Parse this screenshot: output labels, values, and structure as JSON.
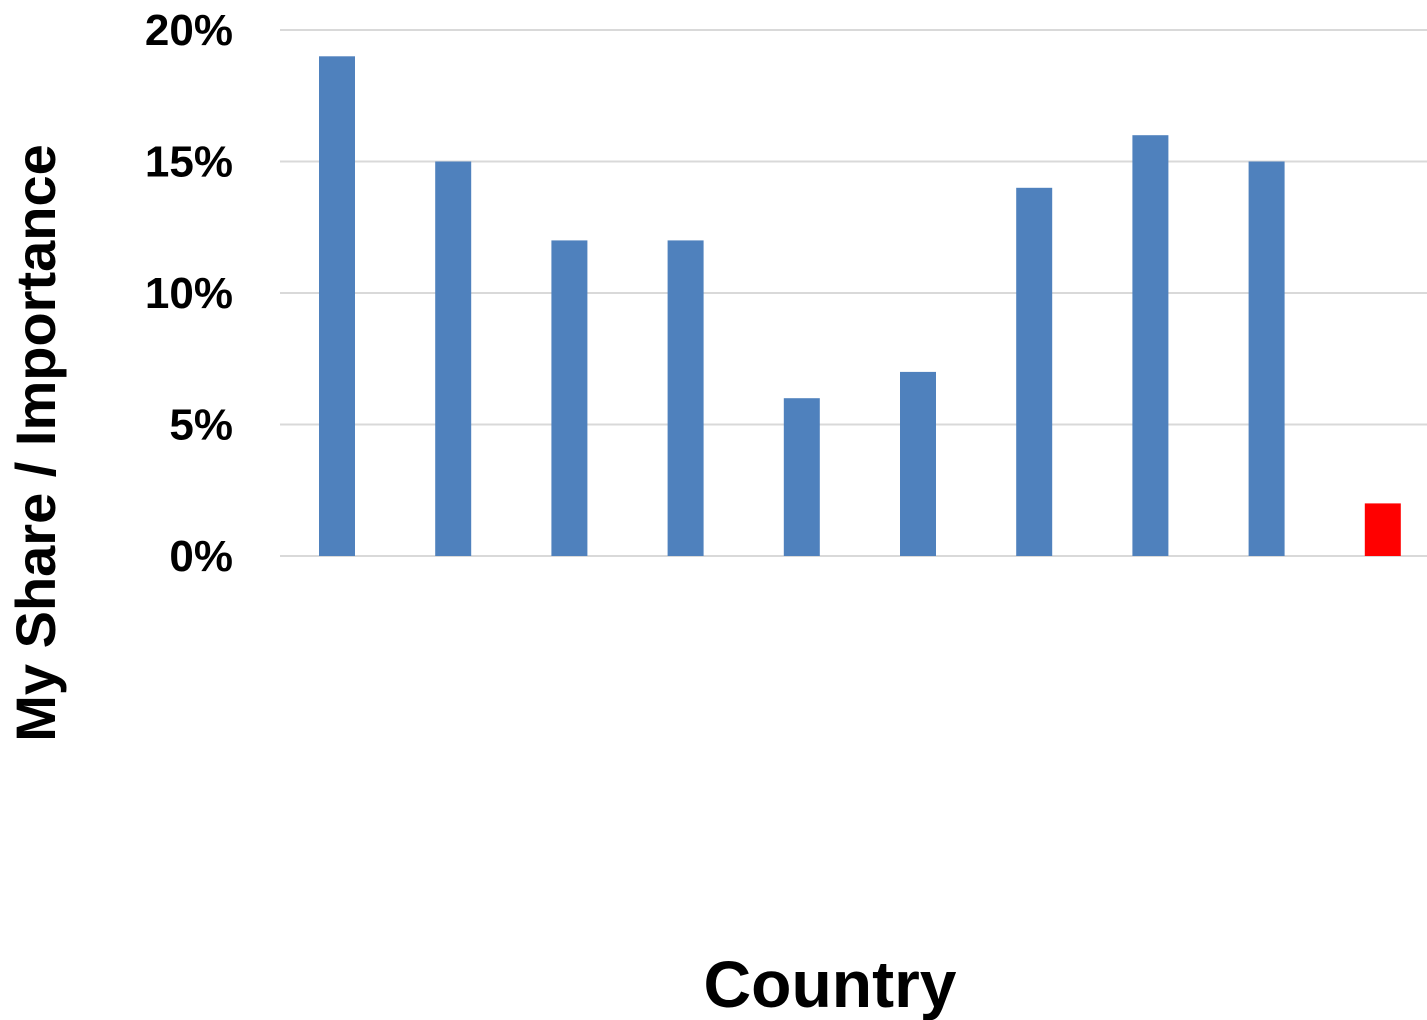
{
  "chart_data": {
    "type": "bar",
    "title": "",
    "xlabel": "Country",
    "ylabel": "My Share / Importance",
    "categories": [
      "",
      "",
      "",
      "",
      "",
      "",
      "",
      "",
      "",
      ""
    ],
    "values": [
      19,
      15,
      12,
      12,
      6,
      7,
      14,
      16,
      15,
      2
    ],
    "value_unit": "%",
    "ylim": [
      0,
      20
    ],
    "yticks": [
      0,
      5,
      10,
      15,
      20
    ],
    "ytick_labels": [
      "0%",
      "5%",
      "10%",
      "15%",
      "20%"
    ],
    "grid": true,
    "legend": "none",
    "colors": {
      "bar": "#4F81BD",
      "highlight_bar": "#FF0000",
      "grid": "#D9D9D9"
    },
    "highlight_index": 9
  }
}
